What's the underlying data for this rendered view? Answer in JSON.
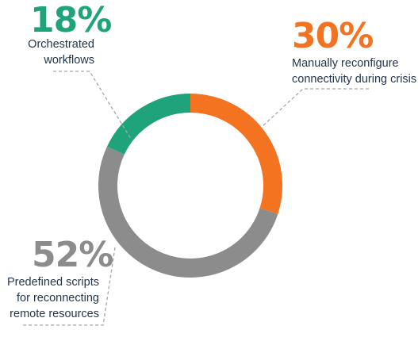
{
  "chart_data": {
    "type": "pie",
    "style": "donut",
    "slices": [
      {
        "label_lines": [
          "Manually reconfigure",
          "connectivity during crisis"
        ],
        "value": 30,
        "percent_label": "30%",
        "color": "#f47321"
      },
      {
        "label_lines": [
          "Predefined scripts",
          "for reconnecting",
          "remote resources"
        ],
        "value": 52,
        "percent_label": "52%",
        "color": "#8c8c8c"
      },
      {
        "label_lines": [
          "Orchestrated",
          "workflows"
        ],
        "value": 18,
        "percent_label": "18%",
        "color": "#1fa37a"
      }
    ],
    "start_angle": "12 o'clock",
    "direction": "clockwise"
  }
}
